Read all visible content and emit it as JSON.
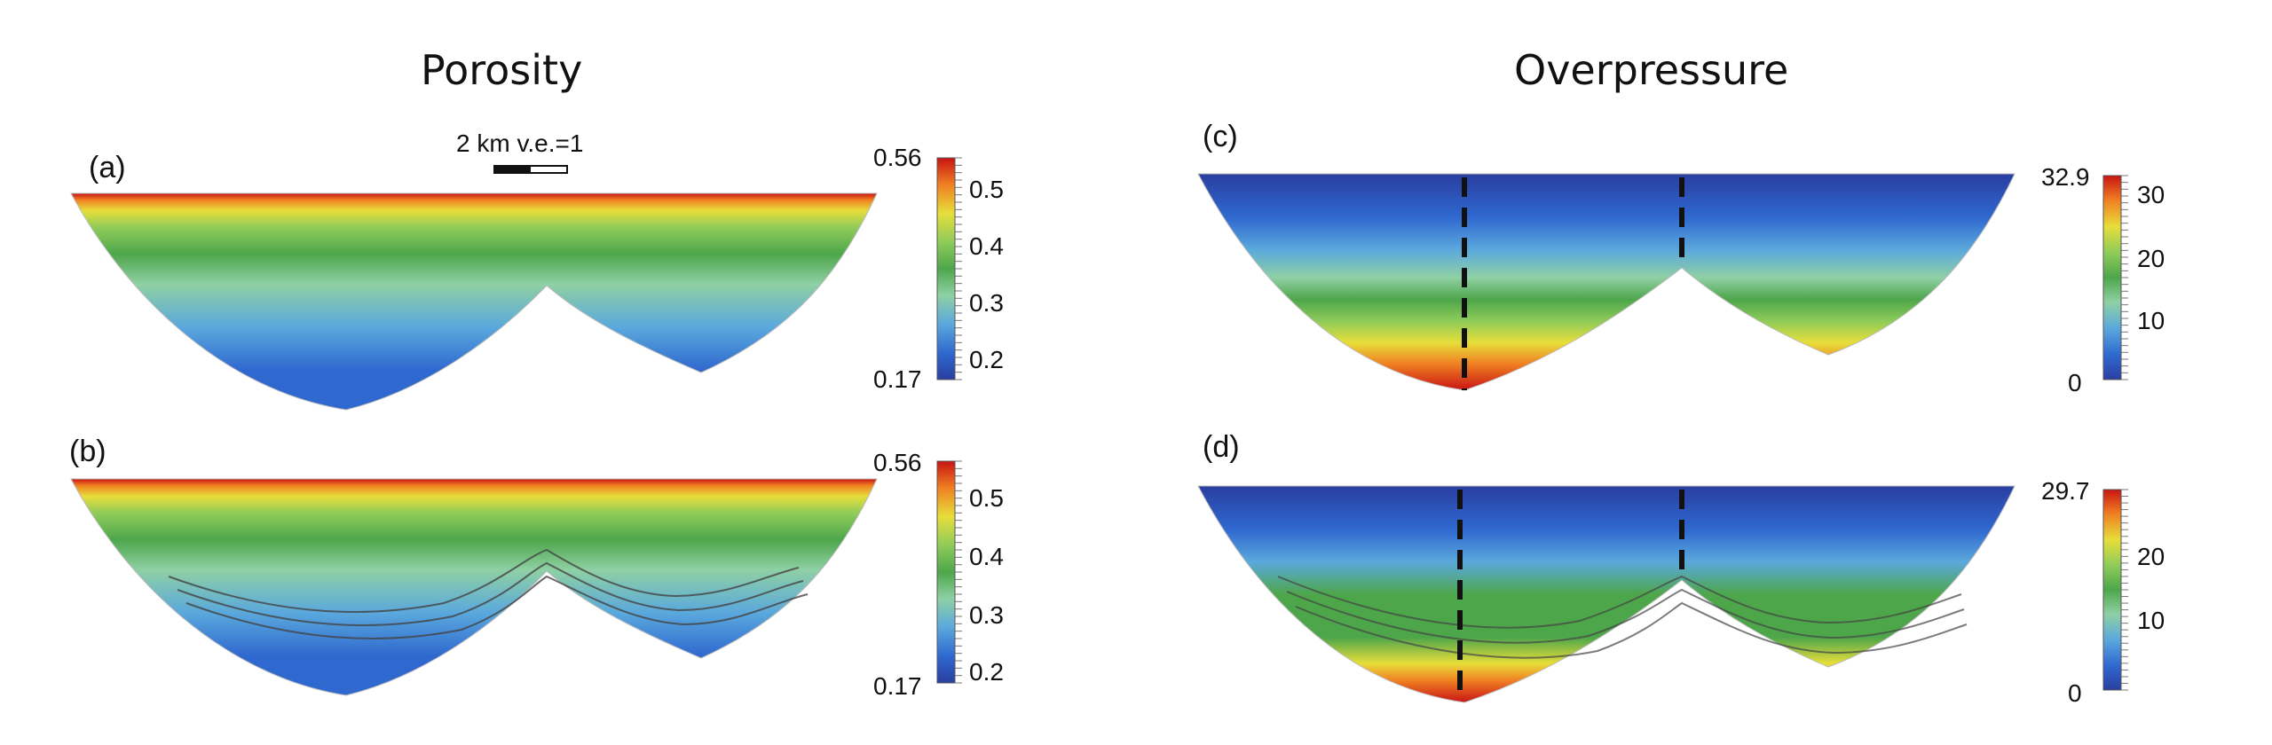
{
  "titles": {
    "left": "Porosity",
    "right": "Overpressure"
  },
  "panels": {
    "a": {
      "label": "(a)"
    },
    "b": {
      "label": "(b)"
    },
    "c": {
      "label": "(c)"
    },
    "d": {
      "label": "(d)"
    }
  },
  "scalebar": {
    "text": "2 km v.e.=1"
  },
  "colorbars": {
    "a": {
      "max_label": "0.56",
      "min_label": "0.17",
      "ticks": [
        "0.5",
        "0.4",
        "0.3",
        "0.2"
      ]
    },
    "b": {
      "max_label": "0.56",
      "min_label": "0.17",
      "ticks": [
        "0.5",
        "0.4",
        "0.3",
        "0.2"
      ]
    },
    "c": {
      "max_label": "32.9",
      "min_label": "0",
      "ticks": [
        "30",
        "20",
        "10"
      ]
    },
    "d": {
      "max_label": "29.7",
      "min_label": "0",
      "ticks": [
        "20",
        "10"
      ]
    }
  },
  "colors": {
    "red": "#c81414",
    "orange": "#f07f22",
    "yellow": "#e7de3a",
    "light_green": "#8ecb5a",
    "green": "#4ea64b",
    "pale_green": "#8fd0a4",
    "light_blue": "#5aa8dd",
    "blue": "#2f68cf",
    "dark_blue": "#2a3ea0"
  }
}
